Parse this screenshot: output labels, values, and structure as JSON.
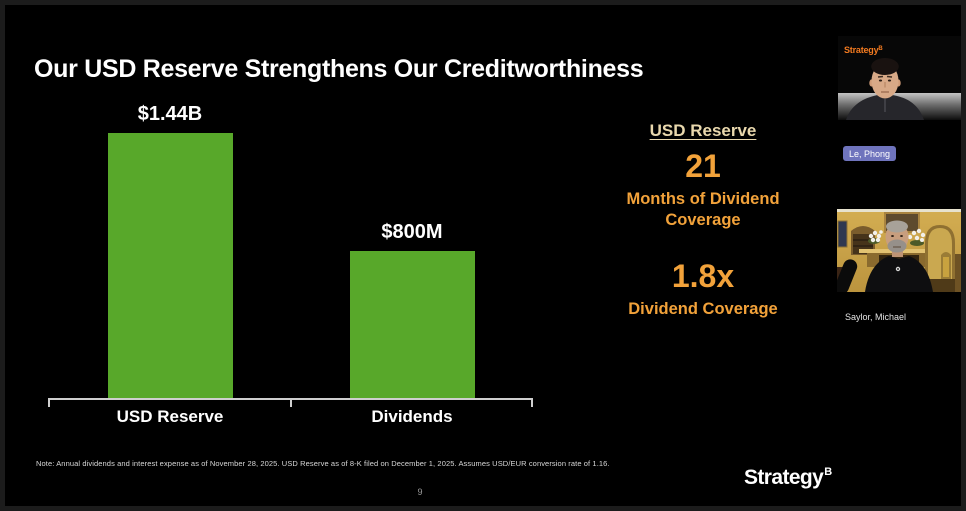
{
  "slide": {
    "title": "Our USD Reserve Strengthens Our Creditworthiness",
    "stats": {
      "heading": "USD Reserve",
      "stat1_value": "21",
      "stat1_label": "Months of Dividend Coverage",
      "stat2_value": "1.8x",
      "stat2_label": "Dividend Coverage"
    },
    "note": "Note: Annual dividends and interest expense as of November 28, 2025. USD Reserve as of 8-K filed on December 1, 2025. Assumes USD/EUR conversion rate of 1.16.",
    "page_number": "9",
    "logo": {
      "text": "Strategy",
      "symbol": "B"
    }
  },
  "chart_data": {
    "type": "bar",
    "categories": [
      "USD Reserve",
      "Dividends"
    ],
    "values": [
      1440,
      800
    ],
    "value_labels": [
      "$1.44B",
      "$800M"
    ],
    "unit": "USD millions",
    "title": "",
    "xlabel": "",
    "ylabel": "",
    "ylim": [
      0,
      1550
    ],
    "grid": false,
    "legend": false,
    "bar_color": "#58a82a",
    "axis_color": "#cfcfcf"
  },
  "colors": {
    "stat_orange": "#f2a23a",
    "heading_cream": "#e9d8ad",
    "brand_orange": "#f47b20",
    "bar_green": "#58a82a",
    "badge_blue": "#6f74bd"
  },
  "participants": [
    {
      "name": "Le, Phong",
      "video_logo": "Strategy",
      "video_logo_symbol": "B"
    },
    {
      "name": "Saylor, Michael"
    }
  ]
}
